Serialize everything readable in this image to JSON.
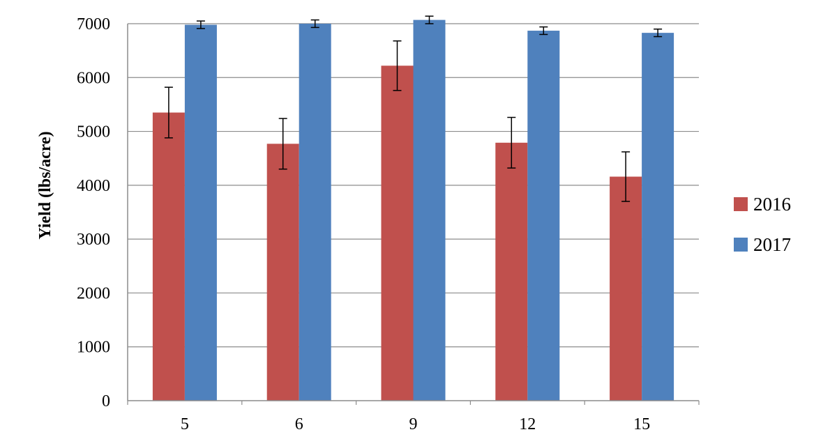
{
  "chart_data": {
    "type": "bar",
    "title": "",
    "xlabel": "",
    "ylabel": "Yield  (lbs/acre)",
    "categories": [
      "5",
      "6",
      "9",
      "12",
      "15"
    ],
    "ylim": [
      0,
      7000
    ],
    "yticks": [
      0,
      1000,
      2000,
      3000,
      4000,
      5000,
      6000,
      7000
    ],
    "grid": "horizontal",
    "legend_position": "right",
    "series": [
      {
        "name": "2016",
        "color": "#c0504d",
        "values": [
          5350,
          4770,
          6220,
          4790,
          4160
        ],
        "error": [
          470,
          470,
          460,
          470,
          460
        ]
      },
      {
        "name": "2017",
        "color": "#4f81bd",
        "values": [
          6980,
          7000,
          7070,
          6870,
          6830
        ],
        "error": [
          70,
          70,
          70,
          70,
          70
        ]
      }
    ]
  }
}
